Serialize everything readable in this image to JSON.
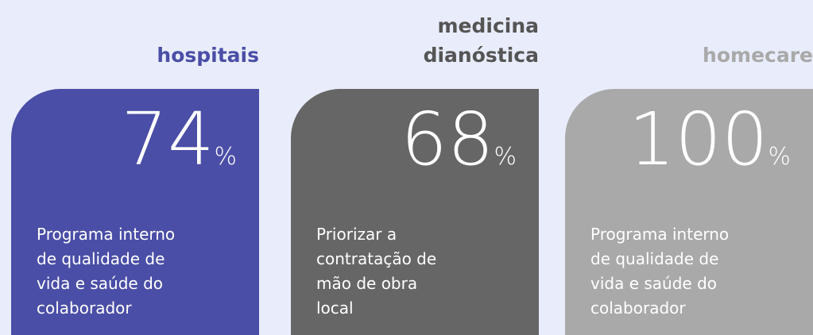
{
  "cards": [
    {
      "title": [
        "hospitais"
      ],
      "value": 74,
      "unit": "%",
      "description": [
        "Programa interno",
        "de qualidade  de",
        "vida e saúde do",
        "colaborador"
      ],
      "color": "#4a4ea6",
      "title_color": "#4a4ea6"
    },
    {
      "title": [
        "medicina",
        "dianóstica"
      ],
      "value": 68,
      "unit": "%",
      "description": [
        "Priorizar a",
        "contratação de",
        "mão de obra",
        "local"
      ],
      "color": "#666666",
      "title_color": "#555555"
    },
    {
      "title": [
        "homecare"
      ],
      "value": 100,
      "unit": "%",
      "description": [
        "Programa interno",
        "de qualidade  de",
        "vida e saúde do",
        "colaborador"
      ],
      "color": "#a9a9a9",
      "title_color": "#a9a9a9"
    }
  ]
}
